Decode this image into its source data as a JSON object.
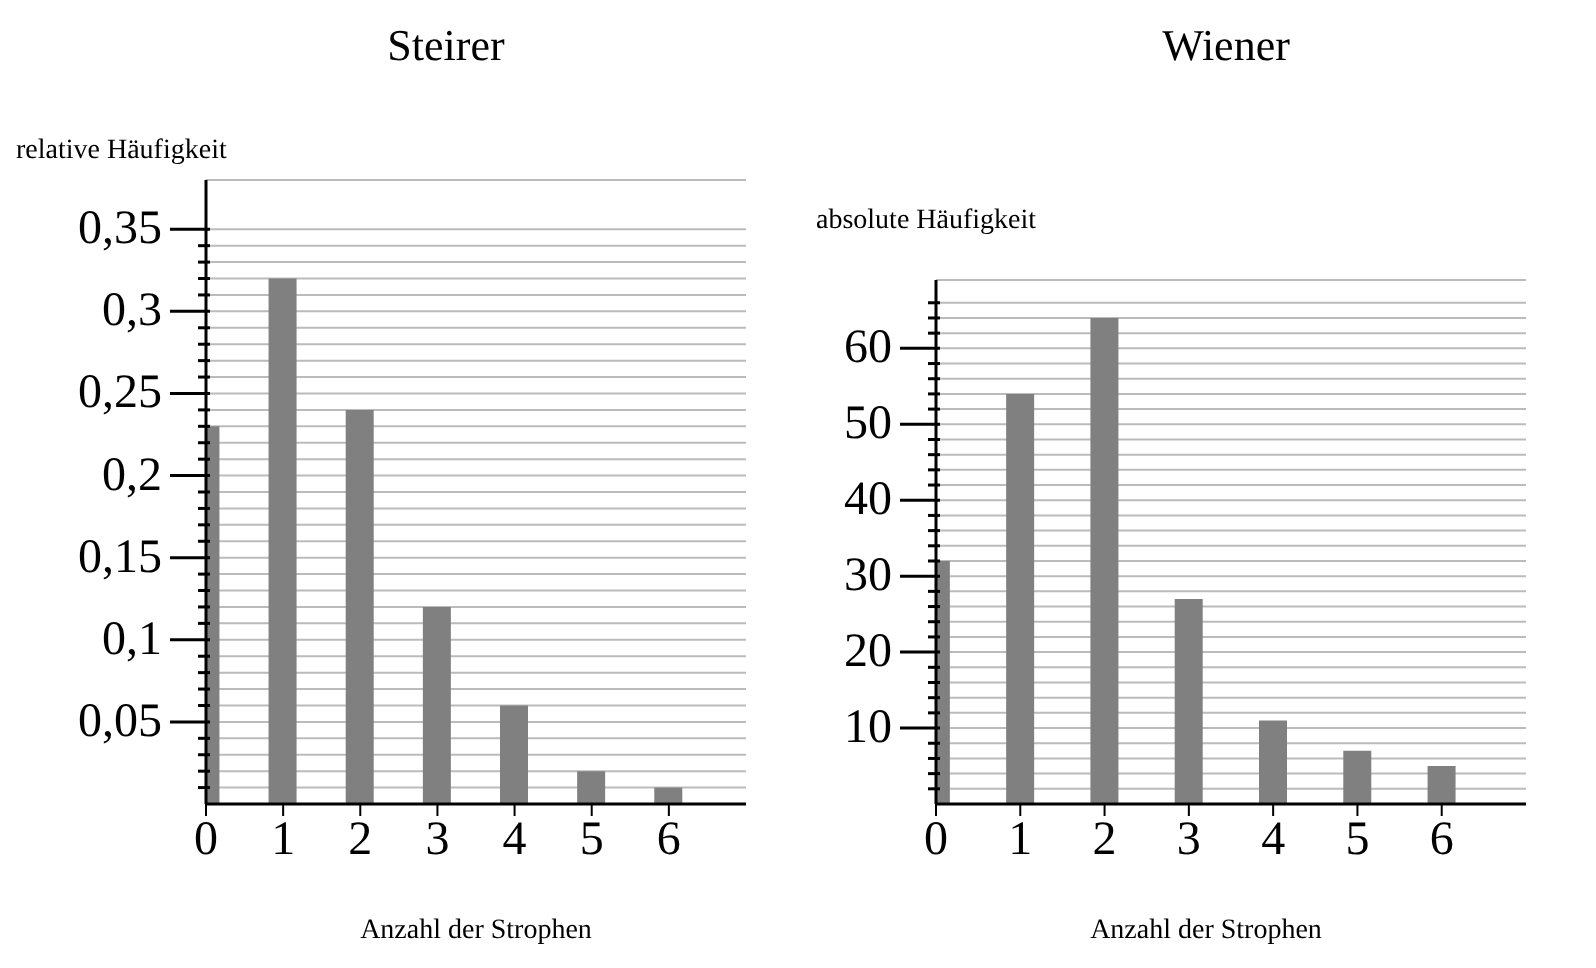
{
  "chart_data": [
    {
      "type": "bar",
      "title": "Steirer",
      "ylabel": "relative Häufigkeit",
      "xlabel": "Anzahl der Strophen",
      "x": [
        0,
        1,
        2,
        3,
        4,
        5,
        6
      ],
      "values": [
        0.23,
        0.32,
        0.24,
        0.12,
        0.06,
        0.02,
        0.01
      ],
      "color": "#808080",
      "xlim": [
        0,
        7
      ],
      "xticks": [
        0,
        1,
        2,
        3,
        4,
        5,
        6
      ],
      "ylim": [
        0,
        0.38
      ],
      "yticks": [
        {
          "value": 0.01,
          "label": null
        },
        {
          "value": 0.02,
          "label": null
        },
        {
          "value": 0.03,
          "label": null
        },
        {
          "value": 0.04,
          "label": null
        },
        {
          "value": 0.05,
          "label": "0,05"
        },
        {
          "value": 0.06,
          "label": null
        },
        {
          "value": 0.07,
          "label": null
        },
        {
          "value": 0.08,
          "label": null
        },
        {
          "value": 0.09,
          "label": null
        },
        {
          "value": 0.1,
          "label": "0,1"
        },
        {
          "value": 0.11,
          "label": null
        },
        {
          "value": 0.12,
          "label": null
        },
        {
          "value": 0.13,
          "label": null
        },
        {
          "value": 0.14,
          "label": null
        },
        {
          "value": 0.15,
          "label": "0,15"
        },
        {
          "value": 0.16,
          "label": null
        },
        {
          "value": 0.17,
          "label": null
        },
        {
          "value": 0.18,
          "label": null
        },
        {
          "value": 0.19,
          "label": null
        },
        {
          "value": 0.2,
          "label": "0,2"
        },
        {
          "value": 0.21,
          "label": null
        },
        {
          "value": 0.22,
          "label": null
        },
        {
          "value": 0.23,
          "label": null
        },
        {
          "value": 0.24,
          "label": null
        },
        {
          "value": 0.25,
          "label": "0,25"
        },
        {
          "value": 0.26,
          "label": null
        },
        {
          "value": 0.27,
          "label": null
        },
        {
          "value": 0.28,
          "label": null
        },
        {
          "value": 0.29,
          "label": null
        },
        {
          "value": 0.3,
          "label": "0,3"
        },
        {
          "value": 0.31,
          "label": null
        },
        {
          "value": 0.32,
          "label": null
        },
        {
          "value": 0.33,
          "label": null
        },
        {
          "value": 0.34,
          "label": null
        },
        {
          "value": 0.35,
          "label": "0,35"
        }
      ],
      "grid": "y"
    },
    {
      "type": "bar",
      "title": "Wiener",
      "ylabel": "absolute Häufigkeit",
      "xlabel": "Anzahl der Strophen",
      "x": [
        0,
        1,
        2,
        3,
        4,
        5,
        6
      ],
      "values": [
        32,
        54,
        64,
        27,
        11,
        7,
        5
      ],
      "color": "#808080",
      "xlim": [
        0,
        7
      ],
      "xticks": [
        0,
        1,
        2,
        3,
        4,
        5,
        6
      ],
      "ylim": [
        0,
        69
      ],
      "yticks": [
        {
          "value": 2,
          "label": null
        },
        {
          "value": 4,
          "label": null
        },
        {
          "value": 6,
          "label": null
        },
        {
          "value": 8,
          "label": null
        },
        10,
        {
          "value": 12,
          "label": null
        },
        {
          "value": 14,
          "label": null
        },
        {
          "value": 16,
          "label": null
        },
        {
          "value": 18,
          "label": null
        },
        20,
        {
          "value": 22,
          "label": null
        },
        {
          "value": 24,
          "label": null
        },
        {
          "value": 26,
          "label": null
        },
        {
          "value": 28,
          "label": null
        },
        30,
        {
          "value": 32,
          "label": null
        },
        {
          "value": 34,
          "label": null
        },
        {
          "value": 36,
          "label": null
        },
        {
          "value": 38,
          "label": null
        },
        40,
        {
          "value": 42,
          "label": null
        },
        {
          "value": 44,
          "label": null
        },
        {
          "value": 46,
          "label": null
        },
        {
          "value": 48,
          "label": null
        },
        50,
        {
          "value": 52,
          "label": null
        },
        {
          "value": 54,
          "label": null
        },
        {
          "value": 56,
          "label": null
        },
        {
          "value": 58,
          "label": null
        },
        60,
        {
          "value": 62,
          "label": null
        },
        {
          "value": 64,
          "label": null
        },
        {
          "value": 66,
          "label": null
        }
      ],
      "grid": "y"
    }
  ]
}
